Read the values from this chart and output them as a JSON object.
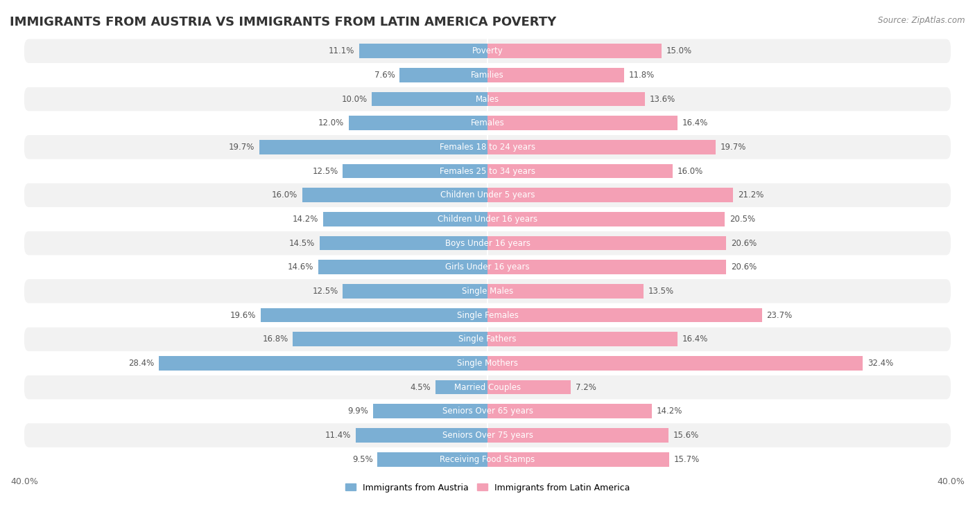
{
  "title": "IMMIGRANTS FROM AUSTRIA VS IMMIGRANTS FROM LATIN AMERICA POVERTY",
  "source": "Source: ZipAtlas.com",
  "categories": [
    "Poverty",
    "Families",
    "Males",
    "Females",
    "Females 18 to 24 years",
    "Females 25 to 34 years",
    "Children Under 5 years",
    "Children Under 16 years",
    "Boys Under 16 years",
    "Girls Under 16 years",
    "Single Males",
    "Single Females",
    "Single Fathers",
    "Single Mothers",
    "Married Couples",
    "Seniors Over 65 years",
    "Seniors Over 75 years",
    "Receiving Food Stamps"
  ],
  "austria_values": [
    11.1,
    7.6,
    10.0,
    12.0,
    19.7,
    12.5,
    16.0,
    14.2,
    14.5,
    14.6,
    12.5,
    19.6,
    16.8,
    28.4,
    4.5,
    9.9,
    11.4,
    9.5
  ],
  "latam_values": [
    15.0,
    11.8,
    13.6,
    16.4,
    19.7,
    16.0,
    21.2,
    20.5,
    20.6,
    20.6,
    13.5,
    23.7,
    16.4,
    32.4,
    7.2,
    14.2,
    15.6,
    15.7
  ],
  "austria_color": "#7bafd4",
  "latam_color": "#f4a0b5",
  "background_row_even": "#f2f2f2",
  "background_row_odd": "#ffffff",
  "xlim_max": 40,
  "legend_austria": "Immigrants from Austria",
  "legend_latam": "Immigrants from Latin America",
  "title_fontsize": 13,
  "label_fontsize": 8.5,
  "value_fontsize": 8.5
}
